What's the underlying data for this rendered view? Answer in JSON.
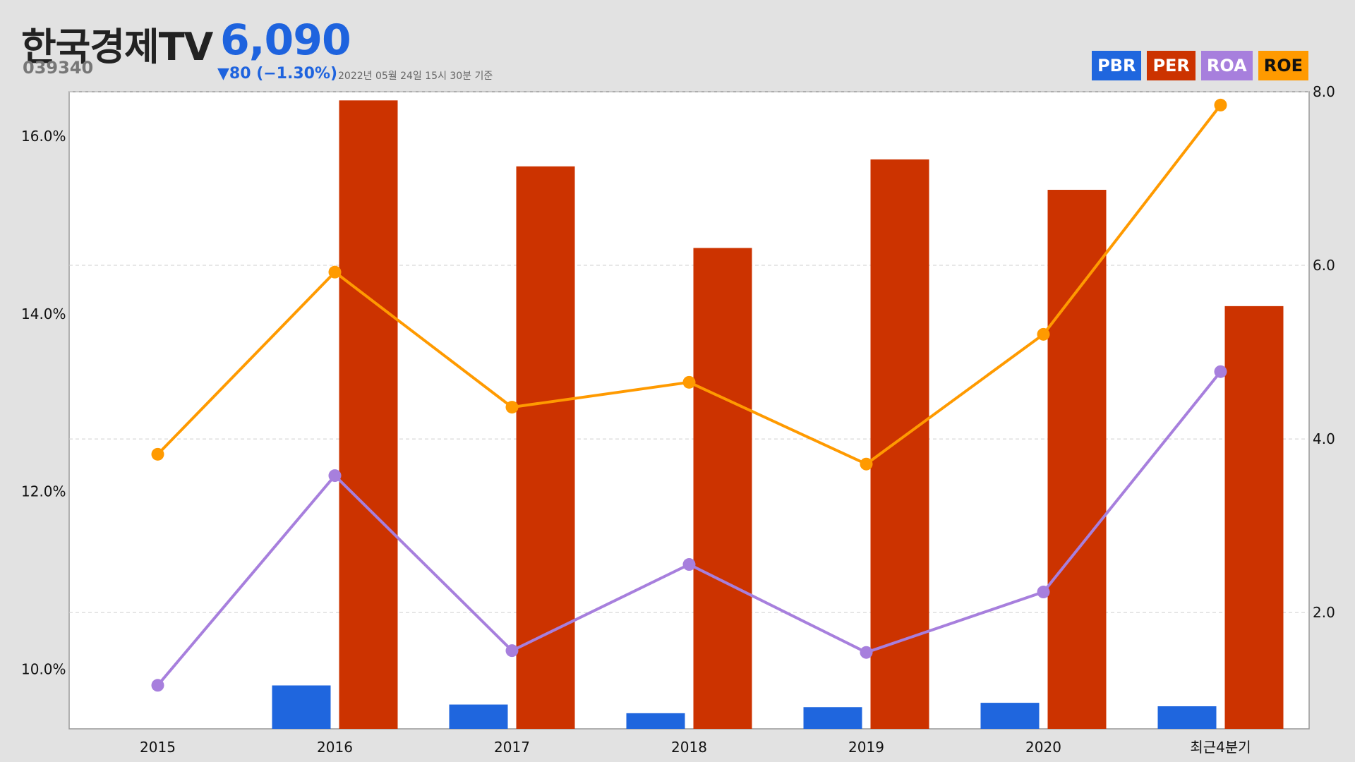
{
  "header": {
    "title": "한국경제TV",
    "price": "6,090",
    "code": "039340",
    "change": "▼80 (−1.30%)",
    "timestamp": "2022년 05월 24일 15시 30분 기준"
  },
  "legend": [
    {
      "label": "PBR",
      "color": "#1f66de",
      "text_color": "#ffffff"
    },
    {
      "label": "PER",
      "color": "#cc3300",
      "text_color": "#ffffff"
    },
    {
      "label": "ROA",
      "color": "#a77fdd",
      "text_color": "#ffffff"
    },
    {
      "label": "ROE",
      "color": "#ff9a00",
      "text_color": "#111111"
    }
  ],
  "chart_data": {
    "type": "bar",
    "categories": [
      "2015",
      "2016",
      "2017",
      "2018",
      "2019",
      "2020",
      "최근4분기"
    ],
    "y_left": {
      "ticks": [
        "10.0%",
        "12.0%",
        "14.0%",
        "16.0%"
      ],
      "range": [
        9.33,
        16.5
      ]
    },
    "y_right": {
      "ticks": [
        "2.0",
        "4.0",
        "6.0",
        "8.0"
      ],
      "range": [
        0.66,
        8.0
      ]
    },
    "grid": true,
    "legend_position": "top-right",
    "series": [
      {
        "name": "PBR",
        "kind": "bar",
        "axis": "right",
        "color": "#1f66de",
        "values": [
          null,
          1.16,
          0.94,
          0.84,
          0.91,
          0.96,
          0.92
        ]
      },
      {
        "name": "PER",
        "kind": "bar",
        "axis": "right",
        "color": "#cc3300",
        "values": [
          null,
          7.9,
          7.14,
          6.2,
          7.22,
          6.87,
          5.53
        ]
      },
      {
        "name": "ROA",
        "kind": "line",
        "axis": "left",
        "color": "#a77fdd",
        "values": [
          9.82,
          12.18,
          10.21,
          11.18,
          10.19,
          10.87,
          13.35
        ]
      },
      {
        "name": "ROE",
        "kind": "line",
        "axis": "left",
        "color": "#ff9a00",
        "values": [
          12.42,
          14.47,
          12.95,
          13.23,
          12.31,
          13.77,
          16.35
        ]
      }
    ]
  }
}
